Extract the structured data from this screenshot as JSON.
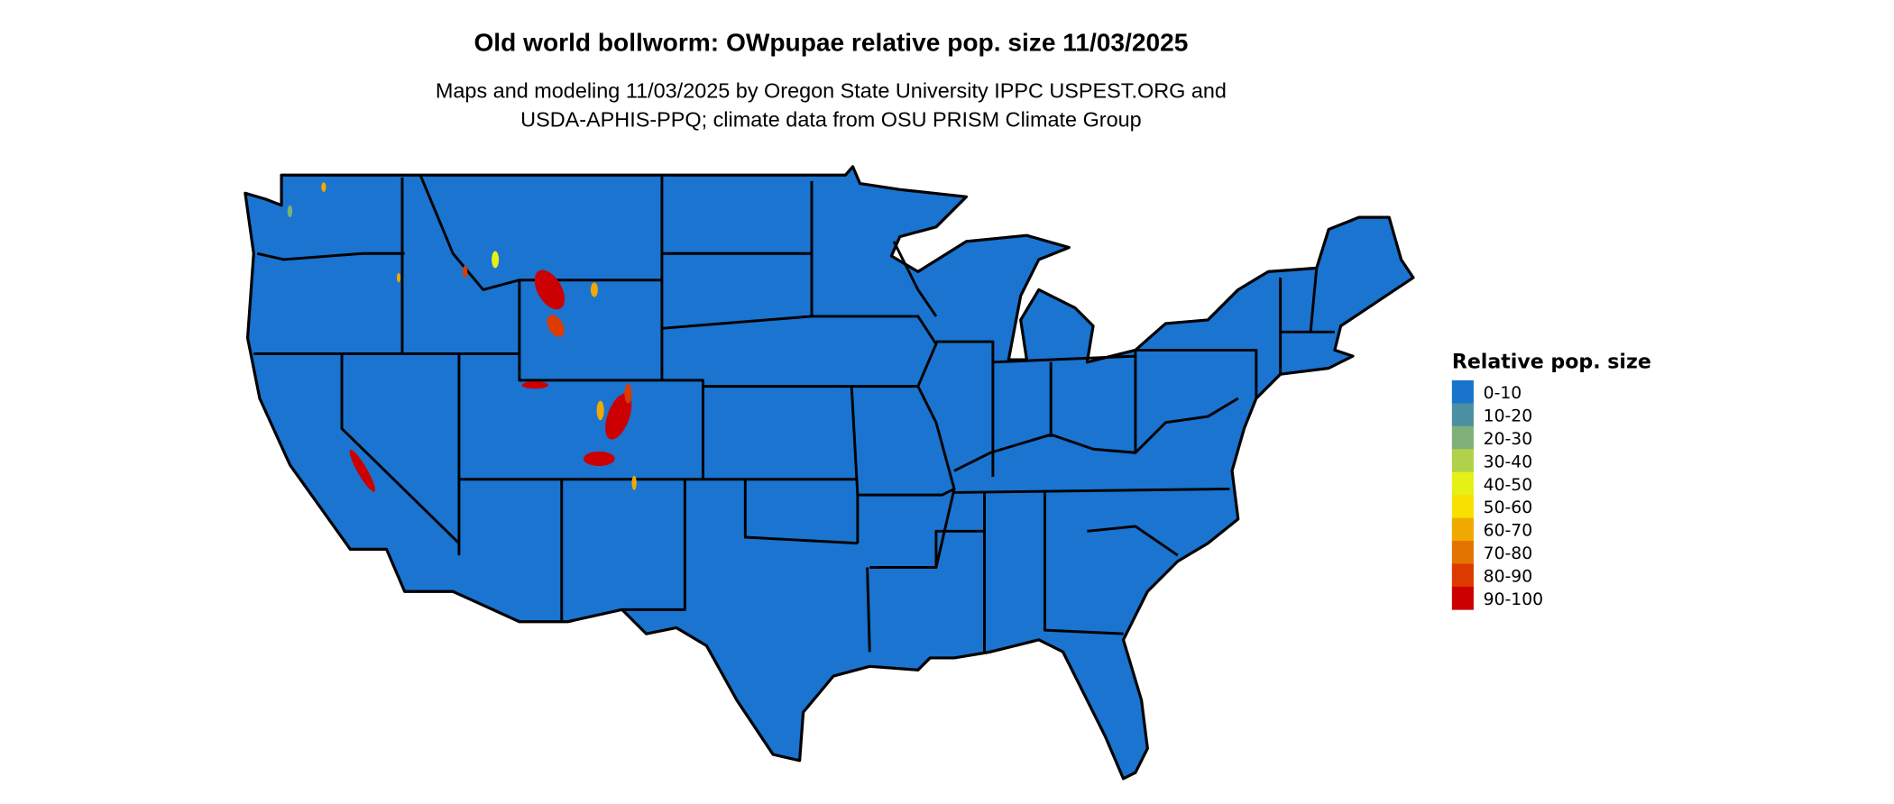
{
  "title": "Old world bollworm: OWpupae relative pop. size 11/03/2025",
  "subtitle_lines": [
    "Maps and modeling 11/03/2025 by Oregon State University IPPC USPEST.ORG and",
    "USDA-APHIS-PPQ; climate data from OSU PRISM Climate Group"
  ],
  "map": {
    "region": "Contiguous United States",
    "base_color": "#1a74d0",
    "high_value_areas": [
      "Wyoming",
      "Colorado",
      "Utah",
      "Idaho",
      "California (Sierra Nevada)"
    ]
  },
  "legend": {
    "title": "Relative pop. size",
    "items": [
      {
        "label": "0-10",
        "color": "#1874CD"
      },
      {
        "label": "10-20",
        "color": "#4A90A0"
      },
      {
        "label": "20-30",
        "color": "#7EB077"
      },
      {
        "label": "30-40",
        "color": "#B2D14A"
      },
      {
        "label": "40-50",
        "color": "#E5F116"
      },
      {
        "label": "50-60",
        "color": "#F8E000"
      },
      {
        "label": "60-70",
        "color": "#F0A900"
      },
      {
        "label": "70-80",
        "color": "#E47400"
      },
      {
        "label": "80-90",
        "color": "#DC3A00"
      },
      {
        "label": "90-100",
        "color": "#CC0000"
      }
    ]
  }
}
